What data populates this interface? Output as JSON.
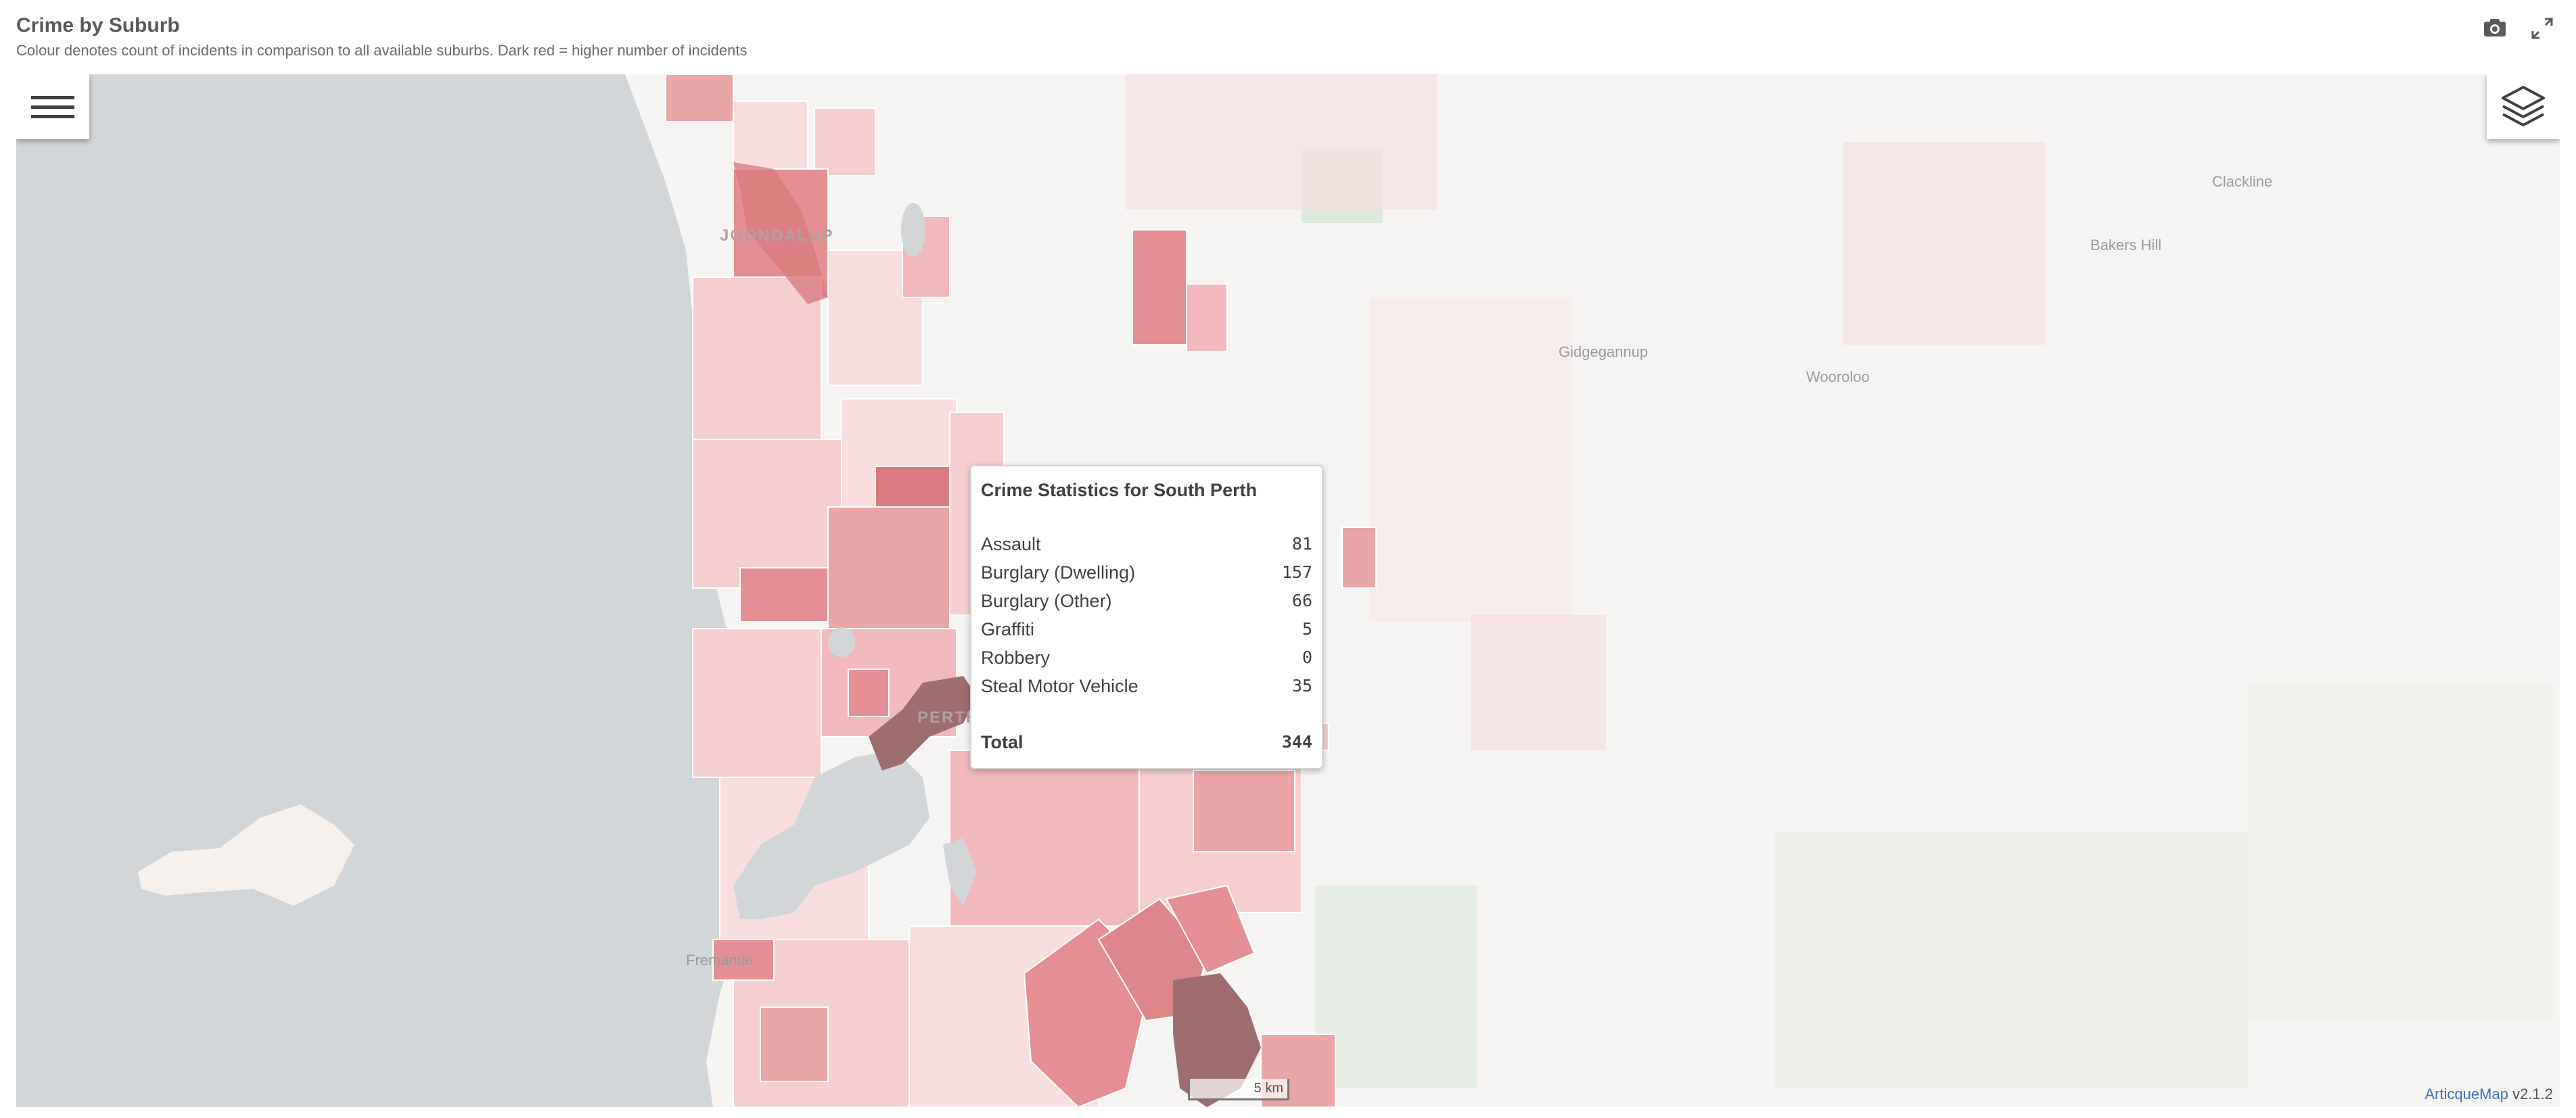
{
  "header": {
    "title": "Crime by Suburb",
    "subtitle": "Colour denotes count of incidents in comparison to all available suburbs. Dark red = higher number of incidents"
  },
  "toolbar": {
    "snapshot_icon": "camera-icon",
    "fullscreen_icon": "expand-icon"
  },
  "map_controls": {
    "menu_icon": "hamburger-menu-icon",
    "layers_icon": "layers-icon"
  },
  "places": {
    "joondalup": "JOONDALUP",
    "perth": "PERTH",
    "fremantle": "Fremantle",
    "clackline": "Clackline",
    "bakers_hill": "Bakers Hill",
    "gidgegannup": "Gidgegannup",
    "wooroloo": "Wooroloo"
  },
  "tooltip": {
    "title": "Crime Statistics for South Perth",
    "rows": [
      {
        "label": "Assault",
        "value": "81"
      },
      {
        "label": "Burglary (Dwelling)",
        "value": "157"
      },
      {
        "label": "Burglary (Other)",
        "value": "66"
      },
      {
        "label": "Graffiti",
        "value": "5"
      },
      {
        "label": "Robbery",
        "value": "0"
      },
      {
        "label": "Steal Motor Vehicle",
        "value": "35"
      }
    ],
    "total_label": "Total",
    "total_value": "344"
  },
  "scale_bar": "5 km",
  "attribution": {
    "brand": "ArticqueMap",
    "version": " v2.1.2"
  },
  "colors": {
    "ocean": "#d3d6d8",
    "land": "#f6f4f3",
    "choropleth_light": "#f8dede",
    "choropleth_mid": "#eaa5a7",
    "choropleth_high": "#d97a80",
    "choropleth_max": "#9d6d70",
    "park_green": "#dde8dc"
  }
}
